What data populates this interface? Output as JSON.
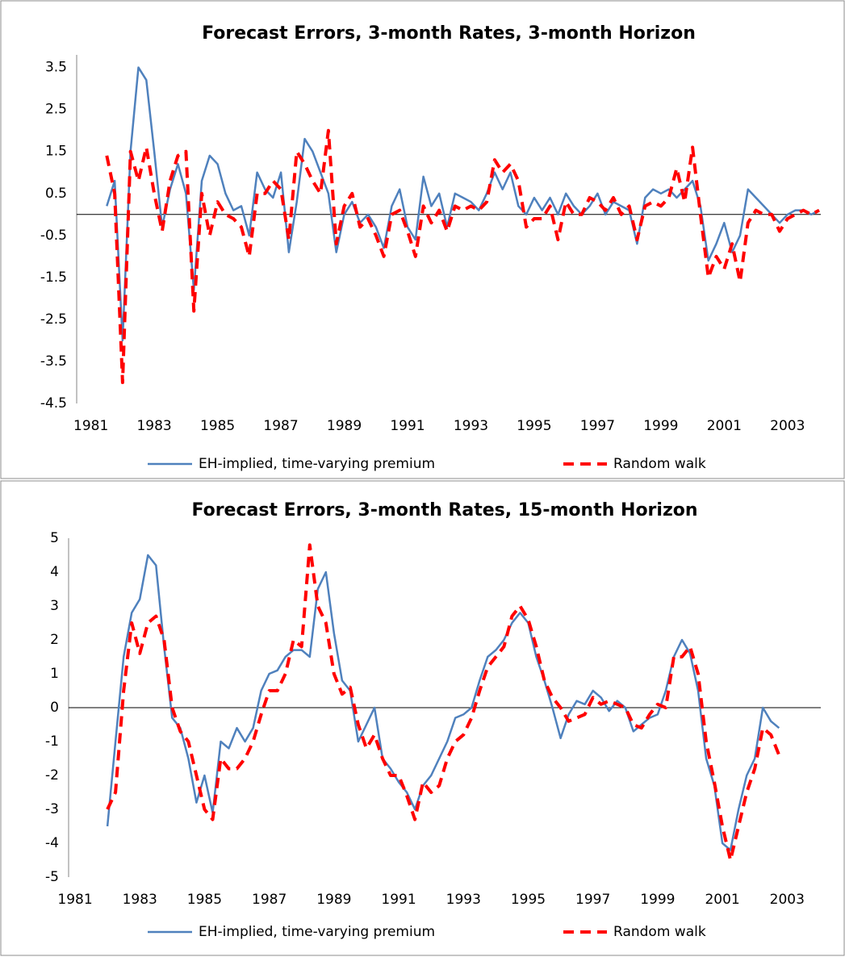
{
  "chart_data": [
    {
      "type": "line",
      "title": "Forecast Errors, 3-month Rates, 3-month Horizon",
      "x": [
        1981.5,
        1981.75,
        1982.0,
        1982.25,
        1982.5,
        1982.75,
        1983.0,
        1983.25,
        1983.5,
        1983.75,
        1984.0,
        1984.25,
        1984.5,
        1984.75,
        1985.0,
        1985.25,
        1985.5,
        1985.75,
        1986.0,
        1986.25,
        1986.5,
        1986.75,
        1987.0,
        1987.25,
        1987.5,
        1987.75,
        1988.0,
        1988.25,
        1988.5,
        1988.75,
        1989.0,
        1989.25,
        1989.5,
        1989.75,
        1990.0,
        1990.25,
        1990.5,
        1990.75,
        1991.0,
        1991.25,
        1991.5,
        1991.75,
        1992.0,
        1992.25,
        1992.5,
        1992.75,
        1993.0,
        1993.25,
        1993.5,
        1993.75,
        1994.0,
        1994.25,
        1994.5,
        1994.75,
        1995.0,
        1995.25,
        1995.5,
        1995.75,
        1996.0,
        1996.25,
        1996.5,
        1996.75,
        1997.0,
        1997.25,
        1997.5,
        1997.75,
        1998.0,
        1998.25,
        1998.5,
        1998.75,
        1999.0,
        1999.25,
        1999.5,
        1999.75,
        2000.0,
        2000.25,
        2000.5,
        2000.75,
        2001.0,
        2001.25,
        2001.5,
        2001.75,
        2002.0,
        2002.25,
        2002.5,
        2002.75,
        2003.0,
        2003.25,
        2003.5,
        2003.75,
        2004.0
      ],
      "xlim": [
        1980.55,
        2004.05
      ],
      "xticks": [
        1981,
        1983,
        1985,
        1987,
        1989,
        1991,
        1993,
        1995,
        1997,
        1999,
        2001,
        2003
      ],
      "ylim": [
        -4.5,
        3.8
      ],
      "yticks": [
        3.5,
        2.5,
        1.5,
        0.5,
        -0.5,
        -1.5,
        -2.5,
        -3.5,
        -4.5
      ],
      "legend": "bottom",
      "series": [
        {
          "name": "EH-implied, time-varying premium",
          "color": "#4f81bd",
          "dash": false,
          "values": [
            0.2,
            0.8,
            -3.0,
            1.5,
            3.5,
            3.2,
            1.5,
            -0.3,
            0.6,
            1.2,
            0.5,
            -1.8,
            0.8,
            1.4,
            1.2,
            0.5,
            0.1,
            0.2,
            -0.5,
            1.0,
            0.6,
            0.4,
            1.0,
            -0.9,
            0.3,
            1.8,
            1.5,
            1.0,
            0.5,
            -0.9,
            0.0,
            0.3,
            -0.2,
            0.0,
            -0.3,
            -0.8,
            0.2,
            0.6,
            -0.3,
            -0.6,
            0.9,
            0.2,
            0.5,
            -0.3,
            0.5,
            0.4,
            0.3,
            0.1,
            0.5,
            1.0,
            0.6,
            1.0,
            0.2,
            0.0,
            0.4,
            0.1,
            0.4,
            0.0,
            0.5,
            0.2,
            0.0,
            0.2,
            0.5,
            0.0,
            0.3,
            0.2,
            0.1,
            -0.7,
            0.4,
            0.6,
            0.5,
            0.6,
            0.4,
            0.6,
            0.8,
            0.2,
            -1.1,
            -0.7,
            -0.2,
            -0.9,
            -0.5,
            0.6,
            0.4,
            0.2,
            0.0,
            -0.2,
            0.0,
            0.1,
            0.1,
            0.0,
            0.1
          ]
        },
        {
          "name": "Random walk",
          "color": "#ff0000",
          "dash": true,
          "values": [
            1.4,
            0.5,
            -4.0,
            1.5,
            0.8,
            1.6,
            0.5,
            -0.4,
            0.8,
            1.4,
            1.5,
            -2.3,
            0.5,
            -0.5,
            0.3,
            0.0,
            -0.1,
            -0.3,
            -1.0,
            0.5,
            0.5,
            0.8,
            0.6,
            -0.6,
            1.5,
            1.2,
            0.8,
            0.5,
            2.0,
            -0.7,
            0.2,
            0.5,
            -0.3,
            -0.1,
            -0.5,
            -1.0,
            0.0,
            0.1,
            -0.4,
            -1.0,
            0.2,
            -0.2,
            0.1,
            -0.4,
            0.2,
            0.1,
            0.2,
            0.1,
            0.3,
            1.3,
            1.0,
            1.2,
            0.8,
            -0.3,
            -0.1,
            -0.1,
            0.2,
            -0.6,
            0.3,
            0.0,
            0.0,
            0.4,
            0.3,
            0.1,
            0.4,
            0.0,
            0.2,
            -0.6,
            0.2,
            0.3,
            0.2,
            0.4,
            1.1,
            0.3,
            1.6,
            0.0,
            -1.5,
            -1.0,
            -1.3,
            -0.7,
            -1.6,
            -0.2,
            0.1,
            0.0,
            0.0,
            -0.4,
            -0.1,
            0.0,
            0.1,
            0.0,
            0.1
          ]
        }
      ]
    },
    {
      "type": "line",
      "title": "Forecast Errors, 3-month Rates, 15-month Horizon",
      "x": [
        1982.0,
        1982.25,
        1982.5,
        1982.75,
        1983.0,
        1983.25,
        1983.5,
        1983.75,
        1984.0,
        1984.25,
        1984.5,
        1984.75,
        1985.0,
        1985.25,
        1985.5,
        1985.75,
        1986.0,
        1986.25,
        1986.5,
        1986.75,
        1987.0,
        1987.25,
        1987.5,
        1987.75,
        1988.0,
        1988.25,
        1988.5,
        1988.75,
        1989.0,
        1989.25,
        1989.5,
        1989.75,
        1990.0,
        1990.25,
        1990.5,
        1990.75,
        1991.0,
        1991.25,
        1991.5,
        1991.75,
        1992.0,
        1992.25,
        1992.5,
        1992.75,
        1993.0,
        1993.25,
        1993.5,
        1993.75,
        1994.0,
        1994.25,
        1994.5,
        1994.75,
        1995.0,
        1995.25,
        1995.5,
        1995.75,
        1996.0,
        1996.25,
        1996.5,
        1996.75,
        1997.0,
        1997.25,
        1997.5,
        1997.75,
        1998.0,
        1998.25,
        1998.5,
        1998.75,
        1999.0,
        1999.25,
        1999.5,
        1999.75,
        2000.0,
        2000.25,
        2000.5,
        2000.75,
        2001.0,
        2001.25,
        2001.5,
        2001.75,
        2002.0,
        2002.25,
        2002.5,
        2002.75
      ],
      "xlim": [
        1980.8,
        2004.04
      ],
      "xticks": [
        1981,
        1983,
        1985,
        1987,
        1989,
        1991,
        1993,
        1995,
        1997,
        1999,
        2001,
        2003
      ],
      "ylim": [
        -5,
        5
      ],
      "yticks": [
        5,
        4,
        3,
        2,
        1,
        0,
        -1,
        -2,
        -3,
        -4,
        -5
      ],
      "legend": "bottom",
      "series": [
        {
          "name": "EH-implied, time-varying premium",
          "color": "#4f81bd",
          "dash": false,
          "values": [
            -3.5,
            -1.0,
            1.5,
            2.8,
            3.2,
            4.5,
            4.2,
            1.8,
            -0.3,
            -0.6,
            -1.5,
            -2.8,
            -2.0,
            -3.1,
            -1.0,
            -1.2,
            -0.6,
            -1.0,
            -0.6,
            0.5,
            1.0,
            1.1,
            1.5,
            1.7,
            1.7,
            1.5,
            3.5,
            4.0,
            2.2,
            0.8,
            0.5,
            -1.0,
            -0.5,
            0.0,
            -1.5,
            -1.8,
            -2.2,
            -2.5,
            -3.0,
            -2.3,
            -2.0,
            -1.5,
            -1.0,
            -0.3,
            -0.2,
            0.0,
            0.8,
            1.5,
            1.7,
            2.0,
            2.5,
            2.8,
            2.5,
            1.5,
            0.8,
            0.0,
            -0.9,
            -0.2,
            0.2,
            0.1,
            0.5,
            0.3,
            -0.1,
            0.2,
            0.0,
            -0.7,
            -0.5,
            -0.3,
            -0.2,
            0.5,
            1.5,
            2.0,
            1.6,
            0.5,
            -1.5,
            -2.3,
            -4.0,
            -4.2,
            -3.0,
            -2.0,
            -1.5,
            0.0,
            -0.4,
            -0.6
          ]
        },
        {
          "name": "Random walk",
          "color": "#ff0000",
          "dash": true,
          "values": [
            -3.0,
            -2.5,
            0.5,
            2.5,
            1.6,
            2.5,
            2.7,
            2.0,
            0.0,
            -0.7,
            -1.0,
            -2.0,
            -3.0,
            -3.3,
            -1.5,
            -1.8,
            -1.8,
            -1.5,
            -1.0,
            -0.2,
            0.5,
            0.5,
            1.0,
            2.0,
            1.8,
            4.8,
            3.0,
            2.5,
            1.0,
            0.4,
            0.6,
            -0.5,
            -1.2,
            -0.8,
            -1.5,
            -2.0,
            -2.0,
            -2.6,
            -3.3,
            -2.2,
            -2.5,
            -2.3,
            -1.5,
            -1.0,
            -0.8,
            -0.3,
            0.5,
            1.2,
            1.5,
            1.8,
            2.7,
            3.0,
            2.6,
            1.8,
            0.8,
            0.3,
            0.0,
            -0.4,
            -0.3,
            -0.2,
            0.3,
            0.1,
            0.2,
            0.1,
            0.0,
            -0.5,
            -0.6,
            -0.2,
            0.1,
            0.0,
            1.5,
            1.5,
            1.8,
            1.0,
            -1.0,
            -2.2,
            -3.5,
            -4.5,
            -3.5,
            -2.5,
            -1.8,
            -0.6,
            -0.8,
            -1.4
          ]
        }
      ]
    }
  ]
}
